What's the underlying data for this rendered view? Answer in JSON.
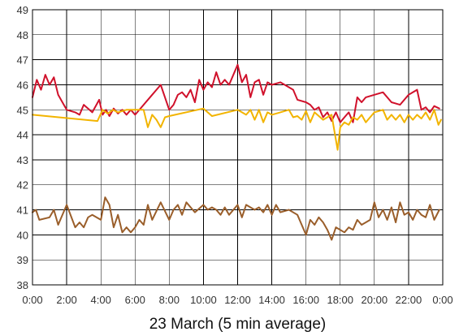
{
  "chart_data": {
    "type": "line",
    "title": "",
    "xlabel": "23 March (5 min average)",
    "ylabel": "",
    "xlim": [
      0,
      24
    ],
    "ylim": [
      38,
      49
    ],
    "grid": true,
    "legend": "none",
    "x_ticks": [
      "0:00",
      "2:00",
      "4:00",
      "6:00",
      "8:00",
      "10:00",
      "12:00",
      "14:00",
      "16:00",
      "18:00",
      "20:00",
      "22:00",
      "0:00"
    ],
    "y_ticks": [
      "38",
      "39",
      "40",
      "41",
      "42",
      "43",
      "44",
      "45",
      "46",
      "47",
      "48",
      "49"
    ],
    "series": [
      {
        "color": "#d0112b",
        "x": [
          0,
          0.25,
          0.5,
          0.75,
          1.0,
          1.25,
          1.5,
          2.0,
          2.5,
          2.75,
          3.0,
          3.5,
          3.9,
          4.1,
          4.3,
          4.5,
          4.75,
          5.0,
          5.25,
          5.5,
          5.75,
          6.0,
          6.5,
          7.0,
          7.25,
          7.5,
          8.0,
          8.25,
          8.5,
          8.75,
          9.0,
          9.25,
          9.5,
          9.75,
          10.0,
          10.25,
          10.5,
          10.75,
          11.0,
          11.25,
          11.5,
          12.0,
          12.25,
          12.5,
          12.75,
          13.0,
          13.25,
          13.5,
          13.75,
          14.0,
          14.5,
          15.0,
          15.25,
          15.5,
          16.0,
          16.25,
          16.5,
          16.75,
          17.0,
          17.25,
          17.5,
          17.75,
          18.0,
          18.25,
          18.5,
          18.75,
          19.0,
          19.25,
          19.5,
          20.0,
          20.5,
          21.0,
          21.5,
          22.0,
          22.5,
          22.75,
          23.0,
          23.25,
          23.5,
          23.8
        ],
        "values": [
          45.5,
          46.2,
          45.8,
          46.4,
          46.0,
          46.3,
          45.6,
          45.0,
          44.9,
          44.8,
          45.2,
          44.9,
          45.4,
          44.8,
          45.0,
          44.75,
          45.05,
          44.85,
          45.0,
          44.8,
          45.0,
          44.8,
          45.2,
          45.6,
          45.8,
          46.0,
          45.0,
          45.2,
          45.6,
          45.7,
          45.5,
          45.8,
          45.3,
          46.2,
          45.8,
          46.1,
          45.9,
          46.5,
          46.0,
          46.2,
          46.0,
          46.8,
          46.1,
          46.4,
          45.5,
          46.1,
          46.2,
          45.6,
          46.1,
          46.0,
          46.1,
          45.9,
          45.8,
          45.4,
          45.3,
          45.2,
          45.0,
          45.1,
          44.7,
          44.9,
          44.55,
          44.9,
          44.5,
          44.7,
          44.9,
          44.5,
          45.5,
          45.3,
          45.5,
          45.6,
          45.7,
          45.3,
          45.2,
          45.6,
          45.8,
          45.0,
          45.1,
          44.9,
          45.15,
          45.05
        ]
      },
      {
        "color": "#f2b400",
        "x": [
          0,
          3.8,
          4.1,
          4.4,
          4.7,
          5.0,
          5.5,
          6.0,
          6.5,
          6.75,
          7.0,
          7.25,
          7.5,
          7.75,
          8.0,
          10.0,
          10.5,
          12.0,
          12.5,
          12.75,
          13.0,
          13.25,
          13.5,
          13.75,
          14.0,
          14.5,
          15.0,
          15.25,
          15.5,
          15.75,
          16.0,
          16.25,
          16.5,
          17.0,
          17.25,
          17.5,
          17.7,
          17.85,
          18.0,
          18.25,
          18.5,
          18.75,
          19.0,
          19.25,
          19.5,
          19.75,
          20.0,
          20.5,
          20.75,
          21.0,
          21.25,
          21.5,
          21.75,
          22.0,
          22.25,
          22.5,
          22.75,
          23.0,
          23.25,
          23.5,
          23.75,
          23.9
        ],
        "values": [
          44.8,
          44.55,
          45.0,
          44.85,
          45.0,
          44.9,
          45.0,
          45.0,
          45.0,
          44.3,
          44.8,
          44.6,
          44.3,
          44.7,
          44.75,
          45.05,
          44.75,
          45.0,
          44.8,
          45.0,
          44.6,
          45.0,
          44.5,
          44.9,
          44.8,
          44.9,
          45.0,
          44.7,
          44.75,
          44.6,
          44.95,
          44.5,
          44.9,
          44.6,
          44.7,
          44.8,
          44.0,
          43.4,
          44.3,
          44.5,
          44.4,
          44.7,
          44.6,
          44.8,
          44.5,
          44.7,
          44.9,
          45.0,
          44.6,
          44.8,
          44.6,
          44.8,
          44.5,
          44.8,
          44.6,
          44.8,
          44.65,
          44.9,
          44.6,
          45.0,
          44.4,
          44.6
        ]
      },
      {
        "color": "#9a5e2a",
        "x": [
          0,
          0.2,
          0.4,
          1.0,
          1.25,
          1.5,
          2.0,
          2.5,
          2.75,
          3.0,
          3.25,
          3.5,
          4.0,
          4.25,
          4.5,
          4.75,
          5.0,
          5.25,
          5.5,
          5.75,
          6.0,
          6.25,
          6.5,
          6.75,
          7.0,
          7.5,
          8.0,
          8.25,
          8.5,
          8.75,
          9.0,
          9.5,
          10.0,
          10.25,
          10.5,
          10.75,
          11.0,
          11.25,
          11.5,
          12.0,
          12.25,
          12.5,
          12.75,
          13.0,
          13.25,
          13.5,
          13.75,
          14.0,
          14.25,
          14.5,
          15.0,
          15.5,
          16.0,
          16.25,
          16.5,
          16.75,
          17.0,
          17.25,
          17.5,
          17.75,
          18.0,
          18.25,
          18.5,
          18.75,
          19.0,
          19.25,
          19.5,
          19.75,
          20.0,
          20.25,
          20.5,
          20.75,
          21.0,
          21.25,
          21.5,
          21.75,
          22.0,
          22.25,
          22.5,
          22.75,
          23.0,
          23.25,
          23.5,
          23.8
        ],
        "values": [
          40.9,
          41.0,
          40.6,
          40.7,
          41.0,
          40.4,
          41.2,
          40.3,
          40.5,
          40.3,
          40.7,
          40.8,
          40.6,
          41.5,
          41.2,
          40.3,
          40.8,
          40.1,
          40.3,
          40.1,
          40.3,
          40.6,
          40.4,
          41.2,
          40.6,
          41.3,
          40.6,
          41.0,
          41.2,
          40.8,
          41.3,
          40.9,
          41.2,
          41.0,
          41.1,
          41.0,
          40.8,
          41.1,
          40.8,
          41.2,
          40.7,
          41.2,
          41.1,
          41.0,
          41.1,
          40.9,
          41.2,
          40.8,
          41.2,
          40.9,
          41.0,
          40.8,
          40.0,
          40.6,
          40.4,
          40.7,
          40.5,
          40.2,
          39.8,
          40.3,
          40.2,
          40.1,
          40.3,
          40.2,
          40.6,
          40.4,
          40.5,
          40.6,
          41.3,
          40.7,
          41.0,
          40.6,
          41.1,
          40.5,
          41.3,
          40.8,
          40.9,
          40.6,
          41.0,
          40.8,
          40.7,
          41.2,
          40.6,
          41.0
        ]
      }
    ]
  }
}
